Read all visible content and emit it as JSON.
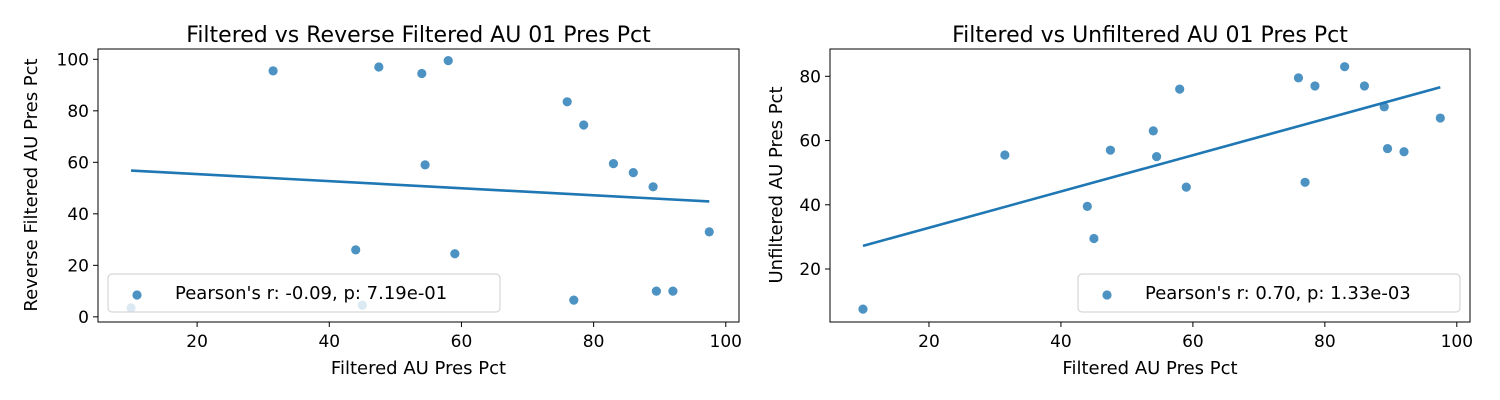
{
  "chart_data": [
    {
      "type": "scatter",
      "title": "Filtered vs Reverse Filtered AU 01 Pres Pct",
      "xlabel": "Filtered AU Pres Pct",
      "ylabel": "Reverse Filtered AU Pres Pct",
      "xlim": [
        5,
        102
      ],
      "ylim": [
        -2,
        104
      ],
      "xticks": [
        20,
        40,
        60,
        80,
        100
      ],
      "yticks": [
        0,
        20,
        40,
        60,
        80,
        100
      ],
      "legend": {
        "label": "Pearson's r: -0.09, p: 7.19e-01",
        "placement": "lower-left"
      },
      "color": "#1f77b4",
      "points": [
        {
          "x": 10,
          "y": 3.5
        },
        {
          "x": 31.5,
          "y": 95.5
        },
        {
          "x": 44,
          "y": 26
        },
        {
          "x": 45,
          "y": 4.5
        },
        {
          "x": 47.5,
          "y": 97
        },
        {
          "x": 54,
          "y": 94.5
        },
        {
          "x": 54.5,
          "y": 59
        },
        {
          "x": 58,
          "y": 99.5
        },
        {
          "x": 59,
          "y": 24.5
        },
        {
          "x": 76,
          "y": 83.5
        },
        {
          "x": 77,
          "y": 6.5
        },
        {
          "x": 78.5,
          "y": 74.5
        },
        {
          "x": 83,
          "y": 59.5
        },
        {
          "x": 86,
          "y": 56
        },
        {
          "x": 89,
          "y": 50.5
        },
        {
          "x": 89.5,
          "y": 10
        },
        {
          "x": 92,
          "y": 10
        },
        {
          "x": 97.5,
          "y": 33
        }
      ],
      "fit_line": [
        {
          "x": 10,
          "y": 56.8
        },
        {
          "x": 97.5,
          "y": 44.8
        }
      ]
    },
    {
      "type": "scatter",
      "title": "Filtered vs Unfiltered AU 01 Pres Pct",
      "xlabel": "Filtered AU Pres Pct",
      "ylabel": "Unfiltered AU Pres Pct",
      "xlim": [
        5,
        102
      ],
      "ylim": [
        3.5,
        88.5
      ],
      "xticks": [
        20,
        40,
        60,
        80,
        100
      ],
      "yticks": [
        20,
        40,
        60,
        80
      ],
      "legend": {
        "label": "Pearson's r: 0.70, p: 1.33e-03",
        "placement": "lower-right"
      },
      "color": "#1f77b4",
      "points": [
        {
          "x": 10,
          "y": 7.5
        },
        {
          "x": 31.5,
          "y": 55.5
        },
        {
          "x": 44,
          "y": 39.5
        },
        {
          "x": 45,
          "y": 29.5
        },
        {
          "x": 47.5,
          "y": 57
        },
        {
          "x": 54,
          "y": 63
        },
        {
          "x": 54.5,
          "y": 55
        },
        {
          "x": 58,
          "y": 76
        },
        {
          "x": 59,
          "y": 45.5
        },
        {
          "x": 76,
          "y": 79.5
        },
        {
          "x": 77,
          "y": 47
        },
        {
          "x": 78.5,
          "y": 77
        },
        {
          "x": 83,
          "y": 83
        },
        {
          "x": 86,
          "y": 77
        },
        {
          "x": 89,
          "y": 70.5
        },
        {
          "x": 89.5,
          "y": 57.5
        },
        {
          "x": 92,
          "y": 56.5
        },
        {
          "x": 97.5,
          "y": 67
        }
      ],
      "fit_line": [
        {
          "x": 10,
          "y": 27.2
        },
        {
          "x": 97.5,
          "y": 76.6
        }
      ]
    }
  ]
}
